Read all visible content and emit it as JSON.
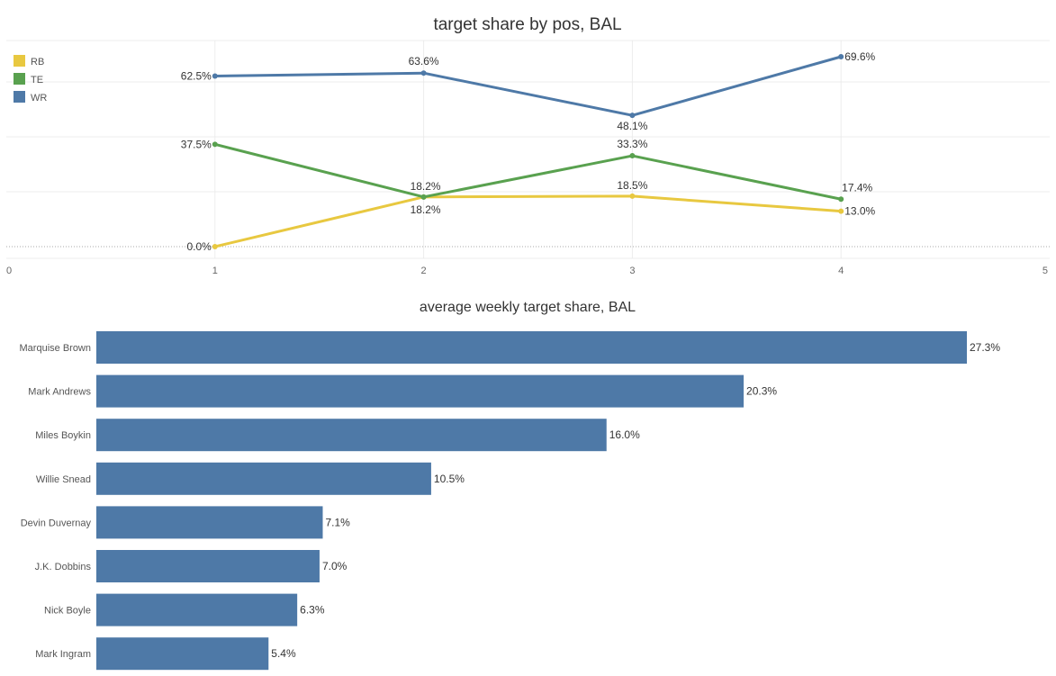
{
  "chart_data": [
    {
      "type": "line",
      "title": "target share by pos, BAL",
      "xlabel": "",
      "ylabel": "",
      "x": [
        1,
        2,
        3,
        4
      ],
      "xlim": [
        0,
        5
      ],
      "x_ticks": [
        "0",
        "1",
        "2",
        "3",
        "4",
        "5"
      ],
      "ylim": [
        0,
        80
      ],
      "grid": true,
      "legend_position": "top-left",
      "series": [
        {
          "name": "RB",
          "color": "#e8c840",
          "values": [
            0.0,
            18.2,
            18.5,
            13.0
          ],
          "labels": [
            "0.0%",
            "18.2%",
            "18.5%",
            "13.0%"
          ]
        },
        {
          "name": "TE",
          "color": "#59a14f",
          "values": [
            37.5,
            18.2,
            33.3,
            17.4
          ],
          "labels": [
            "37.5%",
            "18.2%",
            "33.3%",
            "17.4%"
          ]
        },
        {
          "name": "WR",
          "color": "#4e79a7",
          "values": [
            62.5,
            63.6,
            48.1,
            69.6
          ],
          "labels": [
            "62.5%",
            "63.6%",
            "48.1%",
            "69.6%"
          ]
        }
      ]
    },
    {
      "type": "bar",
      "orientation": "horizontal",
      "title": "average weekly target share, BAL",
      "xlabel": "",
      "ylabel": "",
      "color": "#4e79a7",
      "categories": [
        "Marquise Brown",
        "Mark Andrews",
        "Miles Boykin",
        "Willie Snead",
        "Devin Duvernay",
        "J.K. Dobbins",
        "Nick Boyle",
        "Mark Ingram"
      ],
      "values": [
        27.3,
        20.3,
        16.0,
        10.5,
        7.1,
        7.0,
        6.3,
        5.4
      ],
      "labels": [
        "27.3%",
        "20.3%",
        "16.0%",
        "10.5%",
        "7.1%",
        "7.0%",
        "6.3%",
        "5.4%"
      ]
    }
  ]
}
